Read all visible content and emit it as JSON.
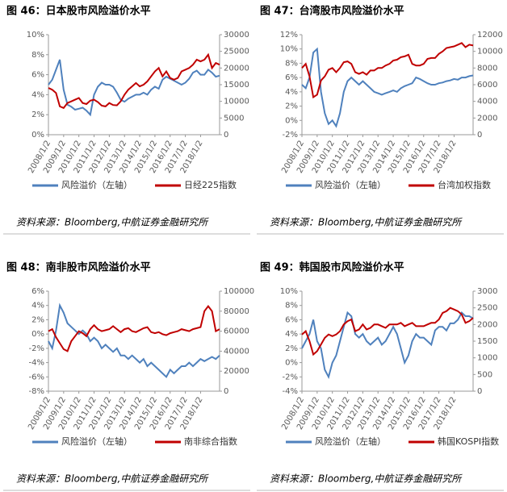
{
  "chart_data": [
    {
      "type": "line",
      "title": "图 46：日本股市风险溢价水平",
      "source": "资料来源：Bloomberg,中航证券金融研究所",
      "categories": [
        "2008/1/2",
        null,
        null,
        null,
        "2009/1/2",
        null,
        null,
        null,
        "2010/1/2",
        null,
        null,
        null,
        "2011/1/2",
        null,
        null,
        null,
        "2012/1/2",
        null,
        null,
        null,
        "2013/1/2",
        null,
        null,
        null,
        "2014/1/2",
        null,
        null,
        null,
        "2015/1/2",
        null,
        null,
        null,
        "2016/1/2",
        null,
        null,
        null,
        "2017/1/2",
        null,
        null,
        null,
        "2018/1/2",
        null,
        null,
        null,
        null,
        null
      ],
      "ylim": [
        0,
        10
      ],
      "yticks": [
        {
          "value": 0,
          "label": "0%"
        },
        {
          "value": 2,
          "label": "2%"
        },
        {
          "value": 4,
          "label": "4%"
        },
        {
          "value": 6,
          "label": "6%"
        },
        {
          "value": 8,
          "label": "8%"
        },
        {
          "value": 10,
          "label": "10%"
        }
      ],
      "y2lim": [
        0,
        30000
      ],
      "y2ticks": [
        0,
        5000,
        10000,
        15000,
        20000,
        25000,
        30000
      ],
      "series": [
        {
          "name": "风险溢价（左轴）",
          "color": "#4f81bd",
          "values": [
            5.0,
            5.5,
            6.5,
            7.5,
            4.5,
            3.0,
            2.8,
            2.5,
            2.6,
            2.7,
            2.4,
            2.0,
            4.0,
            4.8,
            5.2,
            5.0,
            5.0,
            4.8,
            4.2,
            3.5,
            3.3,
            3.6,
            3.8,
            4.0,
            4.0,
            4.2,
            4.0,
            4.5,
            4.8,
            4.6,
            5.5,
            5.8,
            5.6,
            5.4,
            5.2,
            5.0,
            5.2,
            5.6,
            6.2,
            6.4,
            6.0,
            6.0,
            6.5,
            6.2,
            5.8,
            5.9
          ]
        },
        {
          "name": "日经225指数",
          "color": "#c00000",
          "axis": "y2",
          "values": [
            14000,
            13500,
            12500,
            8500,
            8000,
            9500,
            10000,
            10500,
            11000,
            9500,
            9200,
            10200,
            10500,
            9800,
            8700,
            8500,
            9500,
            8900,
            8800,
            10000,
            12000,
            13500,
            14500,
            15500,
            14500,
            15000,
            16000,
            17500,
            19000,
            20000,
            17500,
            19000,
            17000,
            16500,
            17000,
            19000,
            19500,
            20000,
            21000,
            22500,
            22000,
            22500,
            24000,
            20000,
            21500,
            21000
          ]
        }
      ]
    },
    {
      "type": "line",
      "title": "图 47：台湾股市风险溢价水平",
      "source": "资料来源：Bloomberg,中航证券金融研究所",
      "categories": [
        "2008/1/2",
        null,
        null,
        null,
        "2009/1/2",
        null,
        null,
        null,
        "2010/1/2",
        null,
        null,
        null,
        "2011/1/2",
        null,
        null,
        null,
        "2012/1/2",
        null,
        null,
        null,
        "2013/1/2",
        null,
        null,
        null,
        "2014/1/2",
        null,
        null,
        null,
        "2015/1/2",
        null,
        null,
        null,
        "2016/1/2",
        null,
        null,
        null,
        "2017/1/2",
        null,
        null,
        null,
        "2018/1/2",
        null,
        null,
        null,
        null,
        null
      ],
      "ylim": [
        -2,
        12
      ],
      "yticks": [
        {
          "value": -2,
          "label": "-2%"
        },
        {
          "value": 0,
          "label": "0%"
        },
        {
          "value": 2,
          "label": "2%"
        },
        {
          "value": 4,
          "label": "4%"
        },
        {
          "value": 6,
          "label": "6%"
        },
        {
          "value": 8,
          "label": "8%"
        },
        {
          "value": 10,
          "label": "10%"
        },
        {
          "value": 12,
          "label": "12%"
        }
      ],
      "y2lim": [
        0,
        12000
      ],
      "y2ticks": [
        0,
        2000,
        4000,
        6000,
        8000,
        10000,
        12000
      ],
      "series": [
        {
          "name": "风险溢价（左轴）",
          "color": "#4f81bd",
          "values": [
            5.0,
            4.5,
            6.0,
            9.5,
            10.0,
            4.0,
            1.0,
            -0.5,
            0.0,
            -0.8,
            1.0,
            4.0,
            5.5,
            6.0,
            5.5,
            5.0,
            5.5,
            5.0,
            4.5,
            4.0,
            3.8,
            3.6,
            3.8,
            4.0,
            4.2,
            4.0,
            4.5,
            4.8,
            5.0,
            5.2,
            6.0,
            5.8,
            5.5,
            5.2,
            5.0,
            5.0,
            5.2,
            5.3,
            5.5,
            5.6,
            5.8,
            5.7,
            6.0,
            6.0,
            6.2,
            6.3
          ]
        },
        {
          "name": "台湾加权指数",
          "color": "#c00000",
          "axis": "y2",
          "values": [
            8000,
            8500,
            7000,
            4500,
            4800,
            6500,
            7000,
            7800,
            8000,
            7500,
            8000,
            8700,
            8800,
            8500,
            7500,
            7300,
            7500,
            7200,
            7700,
            7700,
            8000,
            8000,
            8300,
            8500,
            8900,
            9000,
            9300,
            9400,
            9600,
            8500,
            8300,
            8300,
            8500,
            9100,
            9200,
            9200,
            9700,
            10000,
            10400,
            10500,
            10600,
            10800,
            11000,
            10500,
            10800,
            10700
          ]
        }
      ]
    },
    {
      "type": "line",
      "title": "图 48：南非股市风险溢价水平",
      "source": "资料来源：Bloomberg,中航证券金融研究所",
      "categories": [
        "2008/1/2",
        null,
        null,
        null,
        "2009/1/2",
        null,
        null,
        null,
        "2010/1/2",
        null,
        null,
        null,
        "2011/1/2",
        null,
        null,
        null,
        "2012/1/2",
        null,
        null,
        null,
        "2013/1/2",
        null,
        null,
        null,
        "2014/1/2",
        null,
        null,
        null,
        "2015/1/2",
        null,
        null,
        null,
        "2016/1/2",
        null,
        null,
        null,
        "2017/1/2",
        null,
        null,
        null,
        "2018/1/2",
        null,
        null,
        null,
        null,
        null
      ],
      "ylim": [
        -8,
        6
      ],
      "yticks": [
        {
          "value": -8,
          "label": "-8%"
        },
        {
          "value": -6,
          "label": "-6%"
        },
        {
          "value": -4,
          "label": "-4%"
        },
        {
          "value": -2,
          "label": "-2%"
        },
        {
          "value": 0,
          "label": "0%"
        },
        {
          "value": 2,
          "label": "2%"
        },
        {
          "value": 4,
          "label": "4%"
        },
        {
          "value": 6,
          "label": "6%"
        }
      ],
      "y2lim": [
        0,
        100000
      ],
      "y2ticks": [
        0,
        20000,
        40000,
        60000,
        80000,
        100000
      ],
      "series": [
        {
          "name": "风险溢价（左轴）",
          "color": "#4f81bd",
          "values": [
            -1.0,
            -2.0,
            0.5,
            4.0,
            3.0,
            1.5,
            1.0,
            0.5,
            0.0,
            0.5,
            0.0,
            -1.0,
            -0.5,
            -1.0,
            -2.0,
            -1.5,
            -2.0,
            -2.5,
            -2.0,
            -3.0,
            -3.0,
            -3.5,
            -3.0,
            -3.5,
            -4.0,
            -3.5,
            -4.5,
            -4.0,
            -4.5,
            -5.0,
            -5.5,
            -6.0,
            -5.0,
            -5.5,
            -5.0,
            -4.5,
            -4.5,
            -4.0,
            -4.5,
            -4.0,
            -3.5,
            -3.8,
            -3.5,
            -3.2,
            -3.5,
            -3.0
          ]
        },
        {
          "name": "南非综合指数",
          "color": "#c00000",
          "axis": "y2",
          "values": [
            60000,
            62000,
            54000,
            48000,
            42000,
            40000,
            50000,
            55000,
            60000,
            58000,
            55000,
            62000,
            66000,
            62000,
            60000,
            61000,
            62000,
            65000,
            62000,
            59000,
            62000,
            63000,
            60000,
            59000,
            61000,
            63000,
            64000,
            59000,
            58000,
            59000,
            57000,
            56000,
            58000,
            59000,
            60000,
            62000,
            61000,
            60000,
            62000,
            63000,
            64000,
            80000,
            85000,
            80000,
            60000,
            62000
          ]
        }
      ]
    },
    {
      "type": "line",
      "title": "图 49：韩国股市风险溢价水平",
      "source": "资料来源：Bloomberg,中航证券金融研究所",
      "categories": [
        "2008/1/2",
        null,
        null,
        null,
        "2009/1/2",
        null,
        null,
        null,
        "2010/1/2",
        null,
        null,
        null,
        "2011/1/2",
        null,
        null,
        null,
        "2012/1/2",
        null,
        null,
        null,
        "2013/1/2",
        null,
        null,
        null,
        "2014/1/2",
        null,
        null,
        null,
        "2015/1/2",
        null,
        null,
        null,
        "2016/1/2",
        null,
        null,
        null,
        "2017/1/2",
        null,
        null,
        null,
        "2018/1/2",
        null,
        null,
        null,
        null,
        null
      ],
      "ylim": [
        -4,
        10
      ],
      "yticks": [
        {
          "value": -4,
          "label": "-4%"
        },
        {
          "value": -2,
          "label": "-2%"
        },
        {
          "value": 0,
          "label": "0%"
        },
        {
          "value": 2,
          "label": "2%"
        },
        {
          "value": 4,
          "label": "4%"
        },
        {
          "value": 6,
          "label": "6%"
        },
        {
          "value": 8,
          "label": "8%"
        },
        {
          "value": 10,
          "label": "10%"
        }
      ],
      "y2lim": [
        0,
        3000
      ],
      "y2ticks": [
        0,
        500,
        1000,
        1500,
        2000,
        2500,
        3000
      ],
      "series": [
        {
          "name": "风险溢价（左轴）",
          "color": "#4f81bd",
          "values": [
            2.0,
            3.0,
            4.0,
            6.0,
            3.0,
            2.0,
            -1.0,
            -2.0,
            0.0,
            1.0,
            3.0,
            5.0,
            7.0,
            6.5,
            4.0,
            3.5,
            4.0,
            3.0,
            2.5,
            3.0,
            3.5,
            2.5,
            3.0,
            4.0,
            5.0,
            4.0,
            2.0,
            0.0,
            1.0,
            3.0,
            4.0,
            3.5,
            3.5,
            3.0,
            2.5,
            4.5,
            5.0,
            5.0,
            4.5,
            5.5,
            5.5,
            6.0,
            7.0,
            6.5,
            6.5,
            6.2
          ]
        },
        {
          "name": "韩国KOSPI指数",
          "color": "#c00000",
          "axis": "y2",
          "values": [
            1700,
            1800,
            1500,
            1100,
            1200,
            1400,
            1600,
            1700,
            1650,
            1700,
            1800,
            2000,
            2100,
            2150,
            1800,
            1850,
            2000,
            1850,
            1900,
            2000,
            2000,
            1950,
            1900,
            2000,
            2000,
            2000,
            2050,
            1950,
            2000,
            2050,
            1950,
            1950,
            1950,
            2000,
            2050,
            2050,
            2150,
            2350,
            2400,
            2500,
            2450,
            2400,
            2300,
            2050,
            2100,
            2200
          ]
        }
      ]
    }
  ]
}
